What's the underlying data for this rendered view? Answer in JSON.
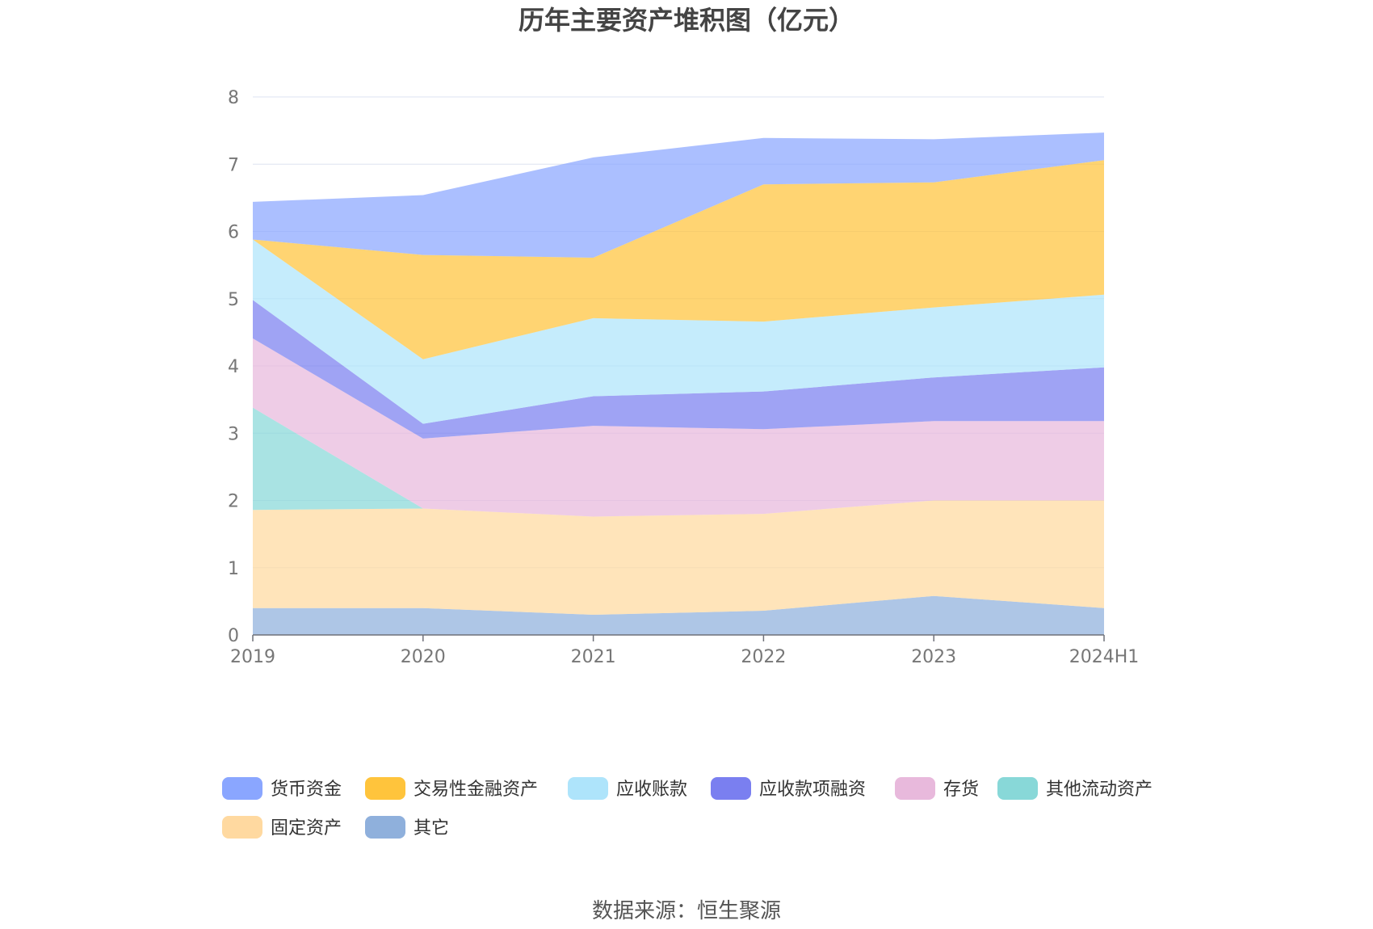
{
  "chart_data": {
    "type": "area",
    "stacked": true,
    "title": "历年主要资产堆积图（亿元）",
    "categories": [
      "2019",
      "2020",
      "2021",
      "2022",
      "2023",
      "2024H1"
    ],
    "y_ticks": [
      "0",
      "1",
      "2",
      "3",
      "4",
      "5",
      "6",
      "7",
      "8"
    ],
    "ylim": [
      0,
      8
    ],
    "grid": true,
    "legend_position": "bottom",
    "series": [
      {
        "name": "其它",
        "color": "#8fb0dc",
        "values": [
          0.4,
          0.4,
          0.3,
          0.36,
          0.58,
          0.4
        ]
      },
      {
        "name": "固定资产",
        "color": "#ffd9a0",
        "values": [
          1.46,
          1.48,
          1.46,
          1.44,
          1.42,
          1.6
        ]
      },
      {
        "name": "其他流动资产",
        "color": "#88d8d8",
        "values": [
          1.52,
          0.0,
          0.0,
          0.0,
          0.0,
          0.0
        ]
      },
      {
        "name": "存货",
        "color": "#e8b9dc",
        "values": [
          1.03,
          1.04,
          1.35,
          1.26,
          1.18,
          1.18
        ]
      },
      {
        "name": "应收款项融资",
        "color": "#7a7ff0",
        "values": [
          0.57,
          0.22,
          0.44,
          0.56,
          0.65,
          0.8
        ]
      },
      {
        "name": "应收账款",
        "color": "#aee4fb",
        "values": [
          0.9,
          0.96,
          1.16,
          1.04,
          1.04,
          1.08
        ]
      },
      {
        "name": "交易性金融资产",
        "color": "#ffc43c",
        "values": [
          0.0,
          1.55,
          0.9,
          2.04,
          1.86,
          2.0
        ]
      },
      {
        "name": "货币资金",
        "color": "#8aa6ff",
        "values": [
          0.56,
          0.89,
          1.49,
          0.69,
          0.64,
          0.41
        ]
      }
    ],
    "legend": [
      {
        "name": "货币资金",
        "color": "#8aa6ff"
      },
      {
        "name": "交易性金融资产",
        "color": "#ffc43c"
      },
      {
        "name": "应收账款",
        "color": "#aee4fb"
      },
      {
        "name": "应收款项融资",
        "color": "#7a7ff0"
      },
      {
        "name": "存货",
        "color": "#e8b9dc"
      },
      {
        "name": "其他流动资产",
        "color": "#88d8d8"
      },
      {
        "name": "固定资产",
        "color": "#ffd9a0"
      },
      {
        "name": "其它",
        "color": "#8fb0dc"
      }
    ]
  },
  "source": "数据来源：恒生聚源"
}
